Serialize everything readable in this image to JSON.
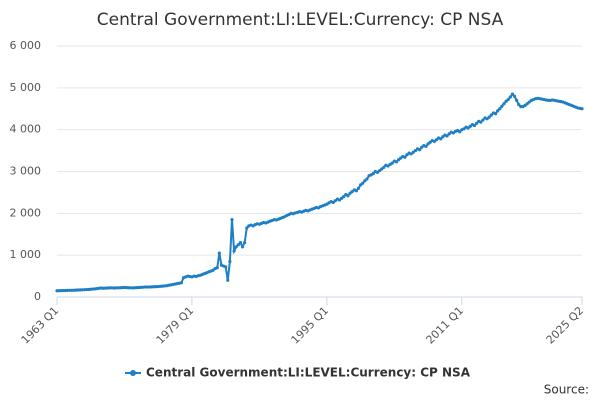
{
  "chart_data": {
    "type": "line",
    "title": "Central Government:LI:LEVEL:Currency: CP NSA",
    "source": "Source:",
    "categories": [
      "1963 Q1",
      null,
      null,
      null,
      null,
      null,
      null,
      null,
      null,
      null,
      null,
      null,
      null,
      null,
      null,
      null,
      null,
      null,
      null,
      null,
      null,
      null,
      null,
      null,
      null,
      null,
      null,
      null,
      null,
      null,
      null,
      null,
      null,
      null,
      null,
      null,
      null,
      null,
      null,
      null,
      null,
      null,
      null,
      null,
      null,
      null,
      null,
      null,
      null,
      null,
      null,
      null,
      null,
      null,
      null,
      null,
      null,
      null,
      null,
      null,
      null,
      null,
      null,
      null,
      "1979 Q1",
      null,
      null,
      null,
      null,
      null,
      null,
      null,
      null,
      null,
      null,
      null,
      null,
      null,
      null,
      null,
      null,
      null,
      null,
      null,
      null,
      null,
      null,
      null,
      null,
      null,
      null,
      null,
      null,
      null,
      null,
      null,
      null,
      null,
      null,
      null,
      null,
      null,
      null,
      null,
      null,
      null,
      null,
      null,
      null,
      null,
      null,
      null,
      null,
      null,
      null,
      null,
      null,
      null,
      null,
      null,
      null,
      null,
      null,
      null,
      null,
      null,
      null,
      null,
      "1995 Q1",
      null,
      null,
      null,
      null,
      null,
      null,
      null,
      null,
      null,
      null,
      null,
      null,
      null,
      null,
      null,
      null,
      null,
      null,
      null,
      null,
      null,
      null,
      null,
      null,
      null,
      null,
      null,
      null,
      null,
      null,
      null,
      null,
      null,
      null,
      null,
      null,
      null,
      null,
      null,
      null,
      null,
      null,
      null,
      null,
      null,
      null,
      null,
      null,
      null,
      null,
      null,
      null,
      null,
      null,
      null,
      null,
      null,
      null,
      null,
      null,
      null,
      null,
      null,
      "2011 Q1",
      null,
      null,
      null,
      null,
      null,
      null,
      null,
      null,
      null,
      null,
      null,
      null,
      null,
      null,
      null,
      null,
      null,
      null,
      null,
      null,
      null,
      null,
      null,
      null,
      null,
      null,
      null,
      null,
      null,
      null,
      null,
      null,
      null,
      null,
      null,
      null,
      null,
      null,
      null,
      null,
      null,
      null,
      null,
      null,
      null,
      null,
      null,
      null,
      null,
      null,
      null,
      null,
      null,
      null,
      null,
      null,
      "2025 Q2"
    ],
    "series": [
      {
        "name": "Central Government:LI:LEVEL:Currency: CP NSA",
        "color": "#1f7fc4",
        "values": [
          150,
          150,
          152,
          155,
          155,
          158,
          160,
          160,
          162,
          165,
          168,
          170,
          172,
          175,
          178,
          180,
          185,
          190,
          195,
          200,
          210,
          215,
          210,
          212,
          215,
          218,
          220,
          215,
          218,
          220,
          222,
          225,
          228,
          225,
          222,
          220,
          218,
          222,
          225,
          228,
          232,
          235,
          240,
          238,
          240,
          242,
          245,
          248,
          250,
          255,
          260,
          265,
          270,
          280,
          290,
          300,
          310,
          320,
          330,
          340,
          460,
          480,
          500,
          490,
          480,
          500,
          490,
          510,
          520,
          540,
          560,
          580,
          600,
          620,
          640,
          680,
          700,
          1050,
          760,
          740,
          720,
          400,
          850,
          1850,
          1100,
          1200,
          1250,
          1300,
          1200,
          1300,
          1650,
          1700,
          1720,
          1700,
          1730,
          1750,
          1740,
          1760,
          1780,
          1770,
          1790,
          1810,
          1830,
          1850,
          1840,
          1860,
          1880,
          1900,
          1920,
          1950,
          1970,
          2000,
          1990,
          2010,
          2020,
          2040,
          2030,
          2050,
          2070,
          2060,
          2080,
          2100,
          2120,
          2140,
          2130,
          2160,
          2180,
          2200,
          2220,
          2250,
          2280,
          2260,
          2300,
          2340,
          2320,
          2360,
          2400,
          2450,
          2420,
          2480,
          2520,
          2560,
          2540,
          2600,
          2680,
          2720,
          2780,
          2820,
          2900,
          2920,
          2950,
          3000,
          2980,
          3020,
          3060,
          3100,
          3150,
          3130,
          3170,
          3200,
          3250,
          3230,
          3280,
          3320,
          3360,
          3340,
          3400,
          3440,
          3420,
          3460,
          3500,
          3540,
          3520,
          3580,
          3620,
          3600,
          3660,
          3700,
          3740,
          3720,
          3760,
          3800,
          3780,
          3830,
          3870,
          3850,
          3900,
          3940,
          3920,
          3960,
          3980,
          3950,
          4000,
          4020,
          4060,
          4040,
          4080,
          4120,
          4100,
          4150,
          4200,
          4180,
          4230,
          4280,
          4260,
          4300,
          4350,
          4400,
          4380,
          4450,
          4500,
          4560,
          4620,
          4680,
          4720,
          4780,
          4850,
          4800,
          4700,
          4600,
          4550,
          4550,
          4580,
          4620,
          4660,
          4700,
          4720,
          4740,
          4750,
          4740,
          4730,
          4720,
          4710,
          4700,
          4700,
          4710,
          4700,
          4690,
          4680,
          4670,
          4660,
          4640,
          4620,
          4600,
          4580,
          4560,
          4540,
          4520,
          4510,
          4500
        ]
      }
    ],
    "ylim": [
      0,
      6000
    ],
    "yticks": [
      0,
      {
        "value": 1000,
        "label": "1 000"
      },
      {
        "value": 2000,
        "label": "2 000"
      },
      {
        "value": 3000,
        "label": "3 000"
      },
      {
        "value": 4000,
        "label": "4 000"
      },
      {
        "value": 5000,
        "label": "5 000"
      },
      {
        "value": 6000,
        "label": "6 000"
      }
    ],
    "grid": true,
    "legend": "bottom"
  }
}
